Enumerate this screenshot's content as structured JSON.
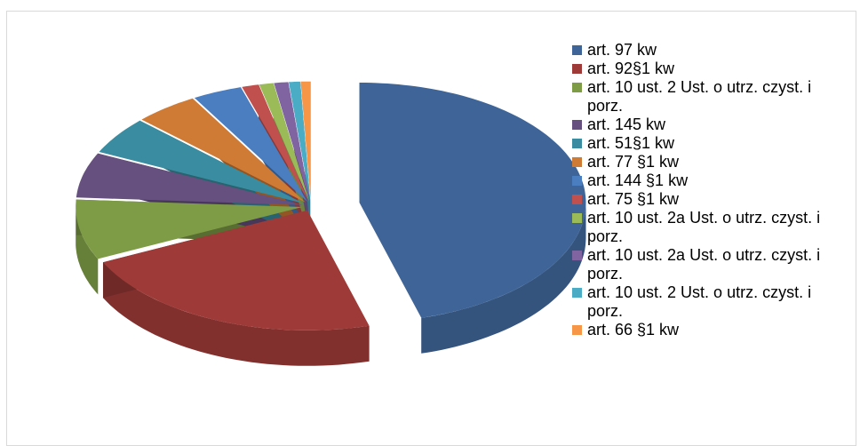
{
  "chart_data": {
    "type": "pie3d",
    "categories": [
      "art. 97 kw",
      "art. 92§1 kw",
      "art. 10 ust. 2 Ust. o utrz. czyst. i porz.",
      "art. 145 kw",
      "art. 51§1 kw",
      "art. 77 §1  kw",
      "art. 144 §1 kw",
      "art. 75 §1  kw",
      "art. 10 ust. 2a Ust. o utrz. czyst. i porz.",
      "art. 10 ust. 2a Ust. o utrz. czyst. i porz.",
      "art. 10 ust. 2 Ust. o utrz. czyst. i porz.",
      "art. 66 §1  kw"
    ],
    "values": [
      45,
      22,
      8,
      6,
      5,
      4.5,
      3.5,
      1.2,
      1,
      1,
      0.8,
      0.7
    ],
    "colors": [
      "#3f6598",
      "#9e3b38",
      "#7e9c46",
      "#66507f",
      "#3a8da0",
      "#d07b35",
      "#4a7ec0",
      "#c0504d",
      "#9bbb59",
      "#8064a2",
      "#4bacc6",
      "#f79646"
    ],
    "legend": "right"
  }
}
